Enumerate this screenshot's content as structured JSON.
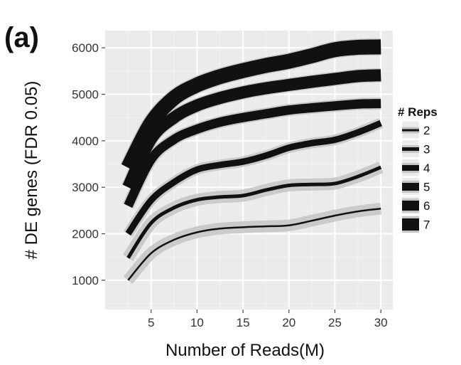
{
  "panel_label": "(a)",
  "chart_data": {
    "type": "line",
    "title": "",
    "xlabel": "Number of Reads(M)",
    "ylabel": "# DE genes (FDR 0.05)",
    "xlim": [
      0,
      31.3
    ],
    "ylim": [
      370,
      6370
    ],
    "x_ticks": [
      5,
      10,
      15,
      20,
      25,
      30
    ],
    "y_ticks": [
      1000,
      2000,
      3000,
      4000,
      5000,
      6000
    ],
    "x_tick_labels": [
      "5",
      "10",
      "15",
      "20",
      "25",
      "30"
    ],
    "y_tick_labels": [
      "1000",
      "2000",
      "3000",
      "4000",
      "5000",
      "6000"
    ],
    "grid": true,
    "background": "#ebebeb",
    "line_color": "#111111",
    "band_color": "#c4c4c4",
    "legend": {
      "title": "# Reps",
      "position": "right"
    },
    "x": [
      2.5,
      5,
      7.5,
      10,
      12.5,
      15,
      17.5,
      20,
      22.5,
      25,
      27.5,
      30
    ],
    "series": [
      {
        "name": "2",
        "values": [
          1000,
          1580,
          1870,
          2030,
          2110,
          2140,
          2160,
          2180,
          2280,
          2390,
          2480,
          2540
        ]
      },
      {
        "name": "3",
        "values": [
          1480,
          2230,
          2560,
          2730,
          2790,
          2820,
          2940,
          3040,
          3060,
          3080,
          3230,
          3430
        ]
      },
      {
        "name": "4",
        "values": [
          2000,
          2720,
          3110,
          3380,
          3480,
          3550,
          3680,
          3850,
          3950,
          4020,
          4180,
          4380
        ]
      },
      {
        "name": "5",
        "values": [
          2600,
          3600,
          4030,
          4250,
          4400,
          4500,
          4580,
          4660,
          4710,
          4750,
          4790,
          4800
        ]
      },
      {
        "name": "6",
        "values": [
          3000,
          4040,
          4500,
          4760,
          4920,
          5040,
          5130,
          5200,
          5270,
          5330,
          5390,
          5410
        ]
      },
      {
        "name": "7",
        "values": [
          3420,
          4380,
          4920,
          5200,
          5380,
          5510,
          5620,
          5710,
          5830,
          5960,
          6010,
          6020
        ]
      }
    ]
  }
}
